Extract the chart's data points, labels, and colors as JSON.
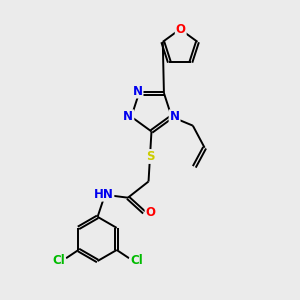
{
  "bg_color": "#ebebeb",
  "atom_colors": {
    "N": "#0000ee",
    "O": "#ff0000",
    "S": "#cccc00",
    "Cl": "#00bb00",
    "H": "#555555",
    "C": "#000000"
  },
  "font_size_atom": 8.5,
  "fig_size": [
    3.0,
    3.0
  ],
  "dpi": 100
}
